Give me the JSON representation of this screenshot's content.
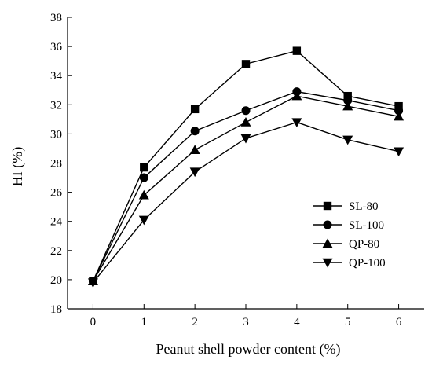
{
  "chart_data": {
    "type": "line",
    "xlabel": "Peanut shell powder content (%)",
    "ylabel": "HI (%)",
    "x": [
      0,
      1,
      2,
      3,
      4,
      5,
      6
    ],
    "xlim": [
      -0.5,
      6.5
    ],
    "ylim": [
      18,
      38
    ],
    "x_ticks": [
      "0",
      "1",
      "2",
      "3",
      "4",
      "5",
      "6"
    ],
    "y_ticks": [
      "18",
      "20",
      "22",
      "24",
      "26",
      "28",
      "30",
      "32",
      "34",
      "36",
      "38"
    ],
    "grid": false,
    "legend_position": "right",
    "series": [
      {
        "name": "SL-80",
        "marker": "square",
        "values": [
          19.9,
          27.7,
          31.7,
          34.8,
          35.7,
          32.6,
          31.9
        ]
      },
      {
        "name": "SL-100",
        "marker": "circle",
        "values": [
          19.9,
          27.0,
          30.2,
          31.6,
          32.9,
          32.3,
          31.6
        ]
      },
      {
        "name": "QP-80",
        "marker": "triangle-up",
        "values": [
          19.9,
          25.8,
          28.9,
          30.8,
          32.6,
          31.9,
          31.2
        ]
      },
      {
        "name": "QP-100",
        "marker": "triangle-down",
        "values": [
          19.8,
          24.1,
          27.4,
          29.7,
          30.8,
          29.6,
          28.8
        ]
      }
    ]
  }
}
